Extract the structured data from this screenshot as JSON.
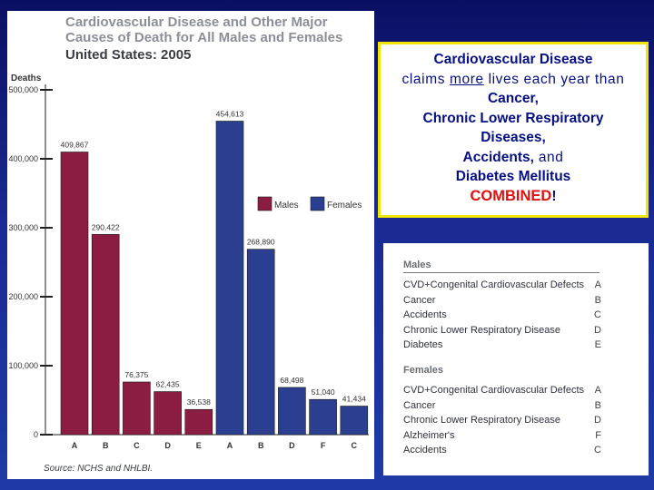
{
  "chart_data": {
    "type": "bar",
    "title_lines": [
      "Cardiovascular Disease and Other Major",
      "Causes of Death for All Males and Females",
      "United States: 2005"
    ],
    "ylabel": "Deaths",
    "ylim": [
      0,
      500000
    ],
    "yticks": [
      "0",
      "100,000",
      "200,000",
      "300,000",
      "400,000",
      "500,000"
    ],
    "ytick_values": [
      0,
      100000,
      200000,
      300000,
      400000,
      500000
    ],
    "legend": [
      {
        "name": "Males",
        "color": "#8b1d42"
      },
      {
        "name": "Females",
        "color": "#2b3f91"
      }
    ],
    "legend_position": "middle-right",
    "grid": false,
    "series": [
      {
        "name": "Males",
        "color": "#8b1d42",
        "categories": [
          "A",
          "B",
          "C",
          "D",
          "E"
        ],
        "values": [
          409867,
          290422,
          76375,
          62435,
          36538
        ],
        "labels": [
          "409,867",
          "290,422",
          "76,375",
          "62,435",
          "36,538"
        ]
      },
      {
        "name": "Females",
        "color": "#2b3f91",
        "categories": [
          "A",
          "B",
          "D",
          "F",
          "C"
        ],
        "values": [
          454613,
          268890,
          68498,
          51040,
          41434
        ],
        "labels": [
          "454,613",
          "268,890",
          "68,498",
          "51,040",
          "41,434"
        ]
      }
    ],
    "source": "Source: NCHS and NHLBI."
  },
  "callout": {
    "line1": "Cardiovascular Disease",
    "line2_pre": "claims ",
    "line2_u": "more",
    "line2_post": " lives each year than",
    "line3": "Cancer,",
    "line4": "Chronic Lower Respiratory",
    "line5": "Diseases,",
    "line6_a": "Accidents,",
    "line6_b": " and",
    "line7": "Diabetes Mellitus",
    "line8_red": "COMBINED",
    "line8_end": "!",
    "border_color": "#f2e600",
    "text_color": "#061083",
    "highlight_color": "#e01010"
  },
  "key": {
    "males_heading": "Males",
    "males": [
      {
        "label": "CVD+Congenital Cardiovascular Defects",
        "code": "A"
      },
      {
        "label": "Cancer",
        "code": "B"
      },
      {
        "label": "Accidents",
        "code": "C"
      },
      {
        "label": "Chronic Lower Respiratory Disease",
        "code": "D"
      },
      {
        "label": "Diabetes",
        "code": "E"
      }
    ],
    "females_heading": "Females",
    "females": [
      {
        "label": "CVD+Congenital Cardiovascular Defects",
        "code": "A"
      },
      {
        "label": "Cancer",
        "code": "B"
      },
      {
        "label": "Chronic Lower Respiratory Disease",
        "code": "D"
      },
      {
        "label": "Alzheimer's",
        "code": "F"
      },
      {
        "label": "Accidents",
        "code": "C"
      }
    ]
  }
}
